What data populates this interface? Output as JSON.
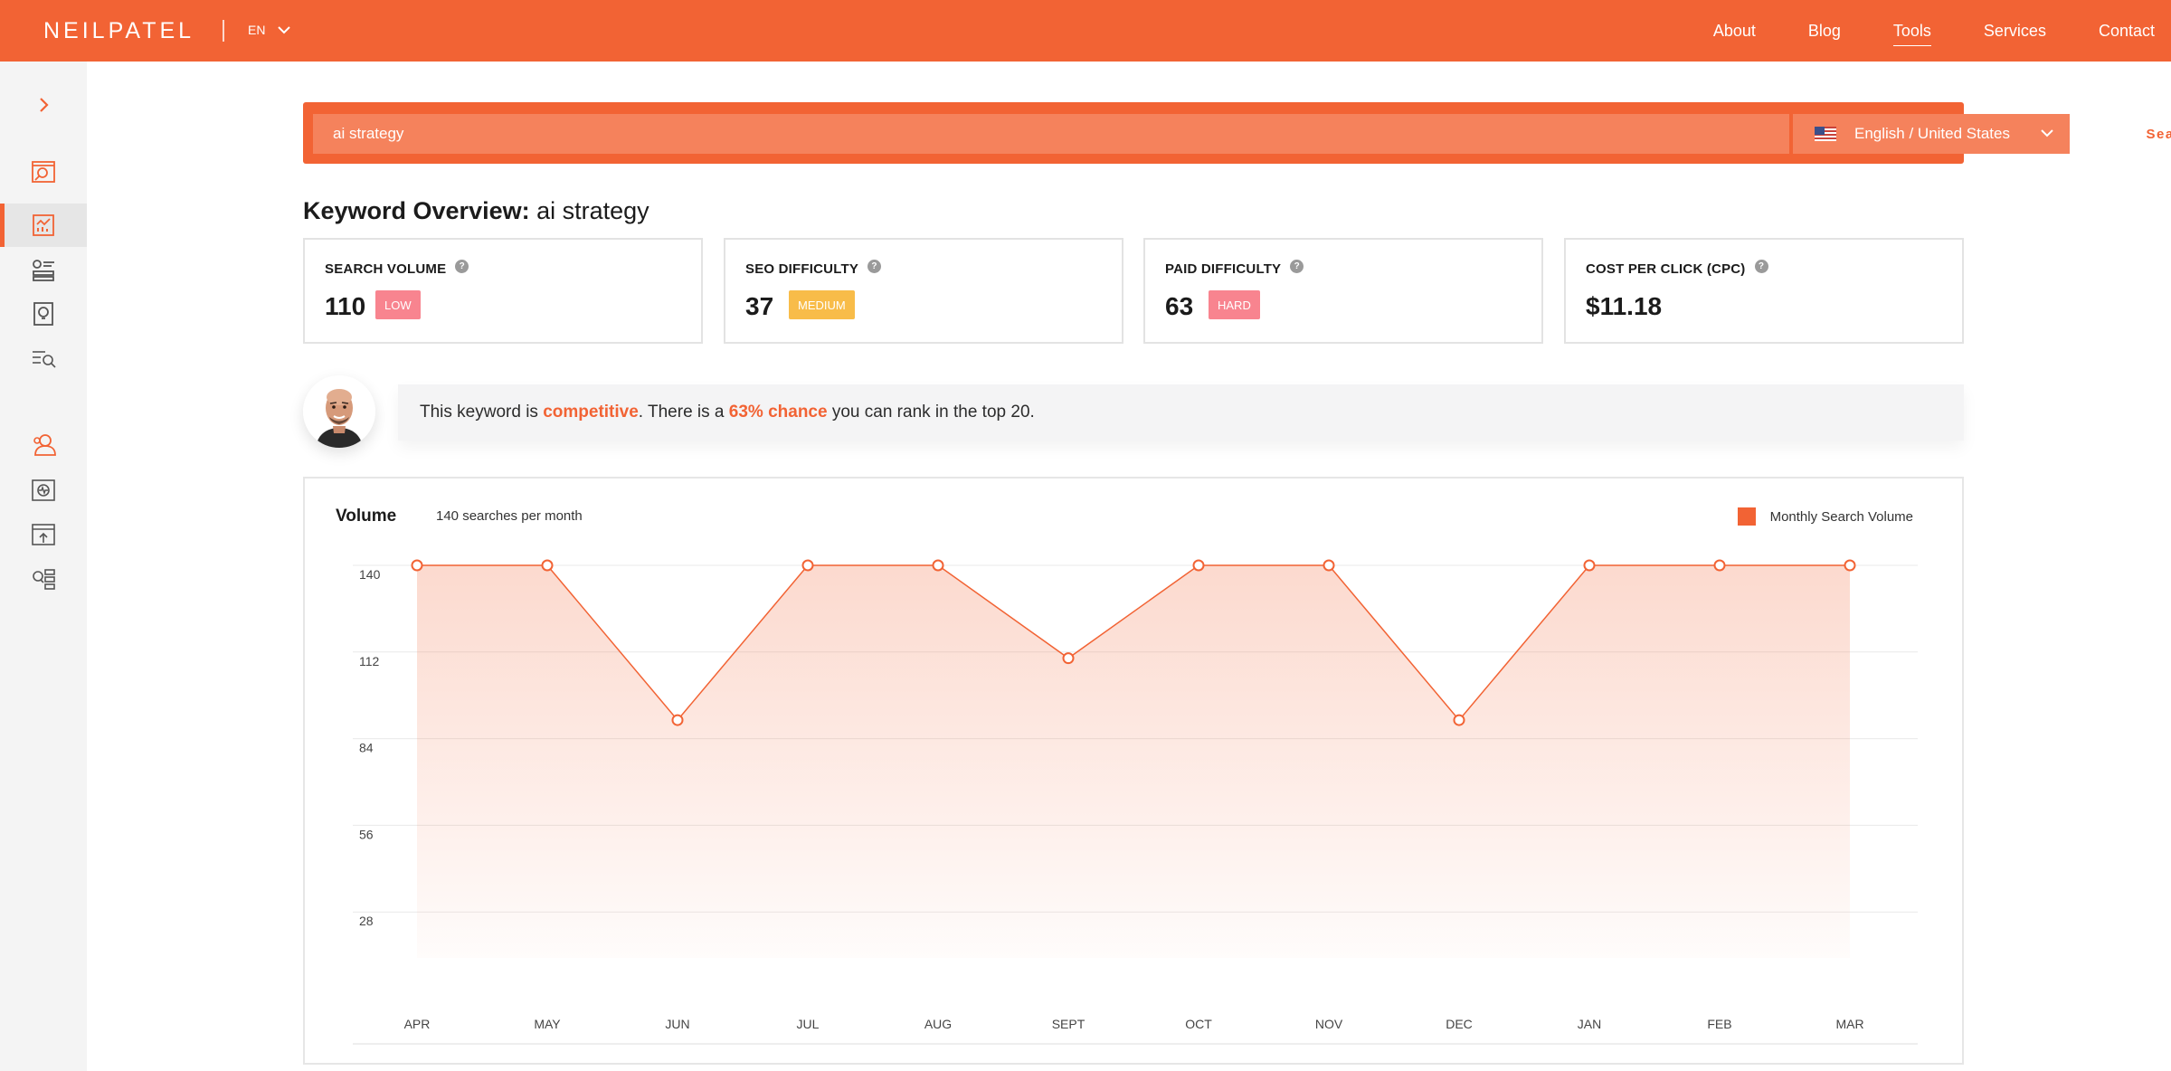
{
  "nav": {
    "logo": "NEILPATEL",
    "lang": "EN",
    "items": [
      "About",
      "Blog",
      "Tools",
      "Services",
      "Contact"
    ],
    "active": "Tools"
  },
  "sidebar": {
    "icons": [
      "chevron-right-icon",
      "report-search-icon",
      "keyword-overview-icon",
      "keyword-ideas-icon",
      "content-ideas-icon",
      "keyword-search-icon",
      "competitor-icon",
      "site-audit-icon",
      "backlinks-icon",
      "list-search-icon"
    ],
    "active_index": 2
  },
  "search": {
    "query": "ai strategy",
    "language": "English / United States",
    "button": "Search"
  },
  "overview": {
    "title_bold": "Keyword Overview:",
    "keyword": "ai strategy"
  },
  "metrics": [
    {
      "label": "SEARCH VOLUME",
      "value": "110",
      "badge": "LOW"
    },
    {
      "label": "SEO DIFFICULTY",
      "value": "37",
      "badge": "MEDIUM"
    },
    {
      "label": "PAID DIFFICULTY",
      "value": "63",
      "badge": "HARD"
    },
    {
      "label": "COST PER CLICK (CPC)",
      "value": "$11.18",
      "badge": ""
    }
  ],
  "insight": {
    "part1": "This keyword is ",
    "highlight1": "competitive",
    "part2": ". There is a ",
    "highlight2": "63% chance",
    "part3": " you can rank in the top 20."
  },
  "chart_panel": {
    "title": "Volume",
    "subtitle": "140 searches per month",
    "legend": "Monthly Search Volume"
  },
  "chart_data": {
    "type": "area",
    "categories": [
      "APR",
      "MAY",
      "JUN",
      "JUL",
      "AUG",
      "SEPT",
      "OCT",
      "NOV",
      "DEC",
      "JAN",
      "FEB",
      "MAR"
    ],
    "series": [
      {
        "name": "Monthly Search Volume",
        "values": [
          140,
          140,
          90,
          140,
          140,
          110,
          140,
          140,
          90,
          140,
          140,
          140
        ]
      }
    ],
    "yticks": [
      28,
      56,
      84,
      112,
      140
    ],
    "ylim": [
      0,
      140
    ],
    "grid": true,
    "legend_position": "top-right",
    "color": "#f26334"
  }
}
